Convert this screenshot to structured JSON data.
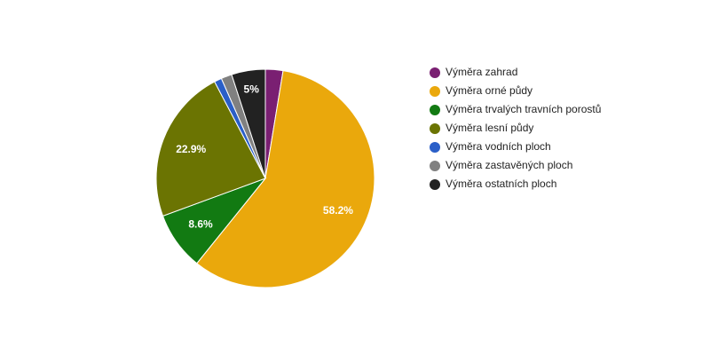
{
  "chart_data": {
    "type": "pie",
    "categories": [
      "Výměra zahrad",
      "Výměra orné půdy",
      "Výměra trvalých travních porostů",
      "Výměra lesní půdy",
      "Výměra vodních ploch",
      "Výměra zastavěných ploch",
      "Výměra ostatních ploch"
    ],
    "values": [
      2.6,
      58.2,
      8.6,
      22.9,
      1.1,
      1.6,
      5
    ],
    "value_labels": [
      null,
      "58.2%",
      "8.6%",
      "22.9%",
      null,
      null,
      "5%"
    ],
    "colors": [
      "#7a1f72",
      "#eaa80c",
      "#127a12",
      "#6b7402",
      "#2a5fc8",
      "#808080",
      "#222222"
    ],
    "legend": "right"
  }
}
